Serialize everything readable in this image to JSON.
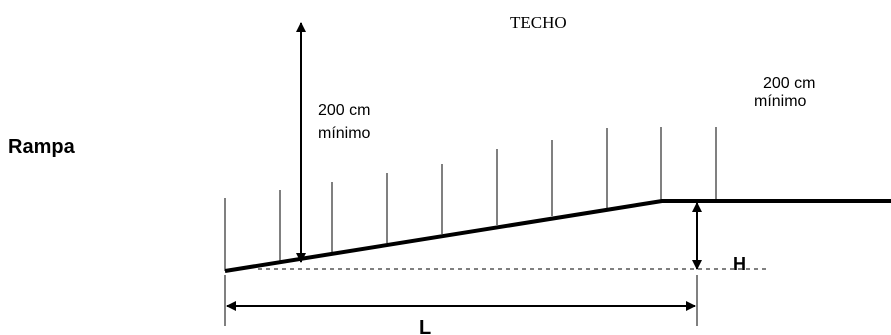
{
  "diagram": {
    "side_title": "Rampa",
    "ceiling_label": "TECHO",
    "left_clearance": {
      "value": "200 cm",
      "note": "mínimo"
    },
    "right_clearance": {
      "value": "200 cm",
      "note": "mínimo"
    },
    "height_label": "H",
    "length_label": "L",
    "colors": {
      "line": "#000000",
      "background": "#ffffff"
    }
  }
}
